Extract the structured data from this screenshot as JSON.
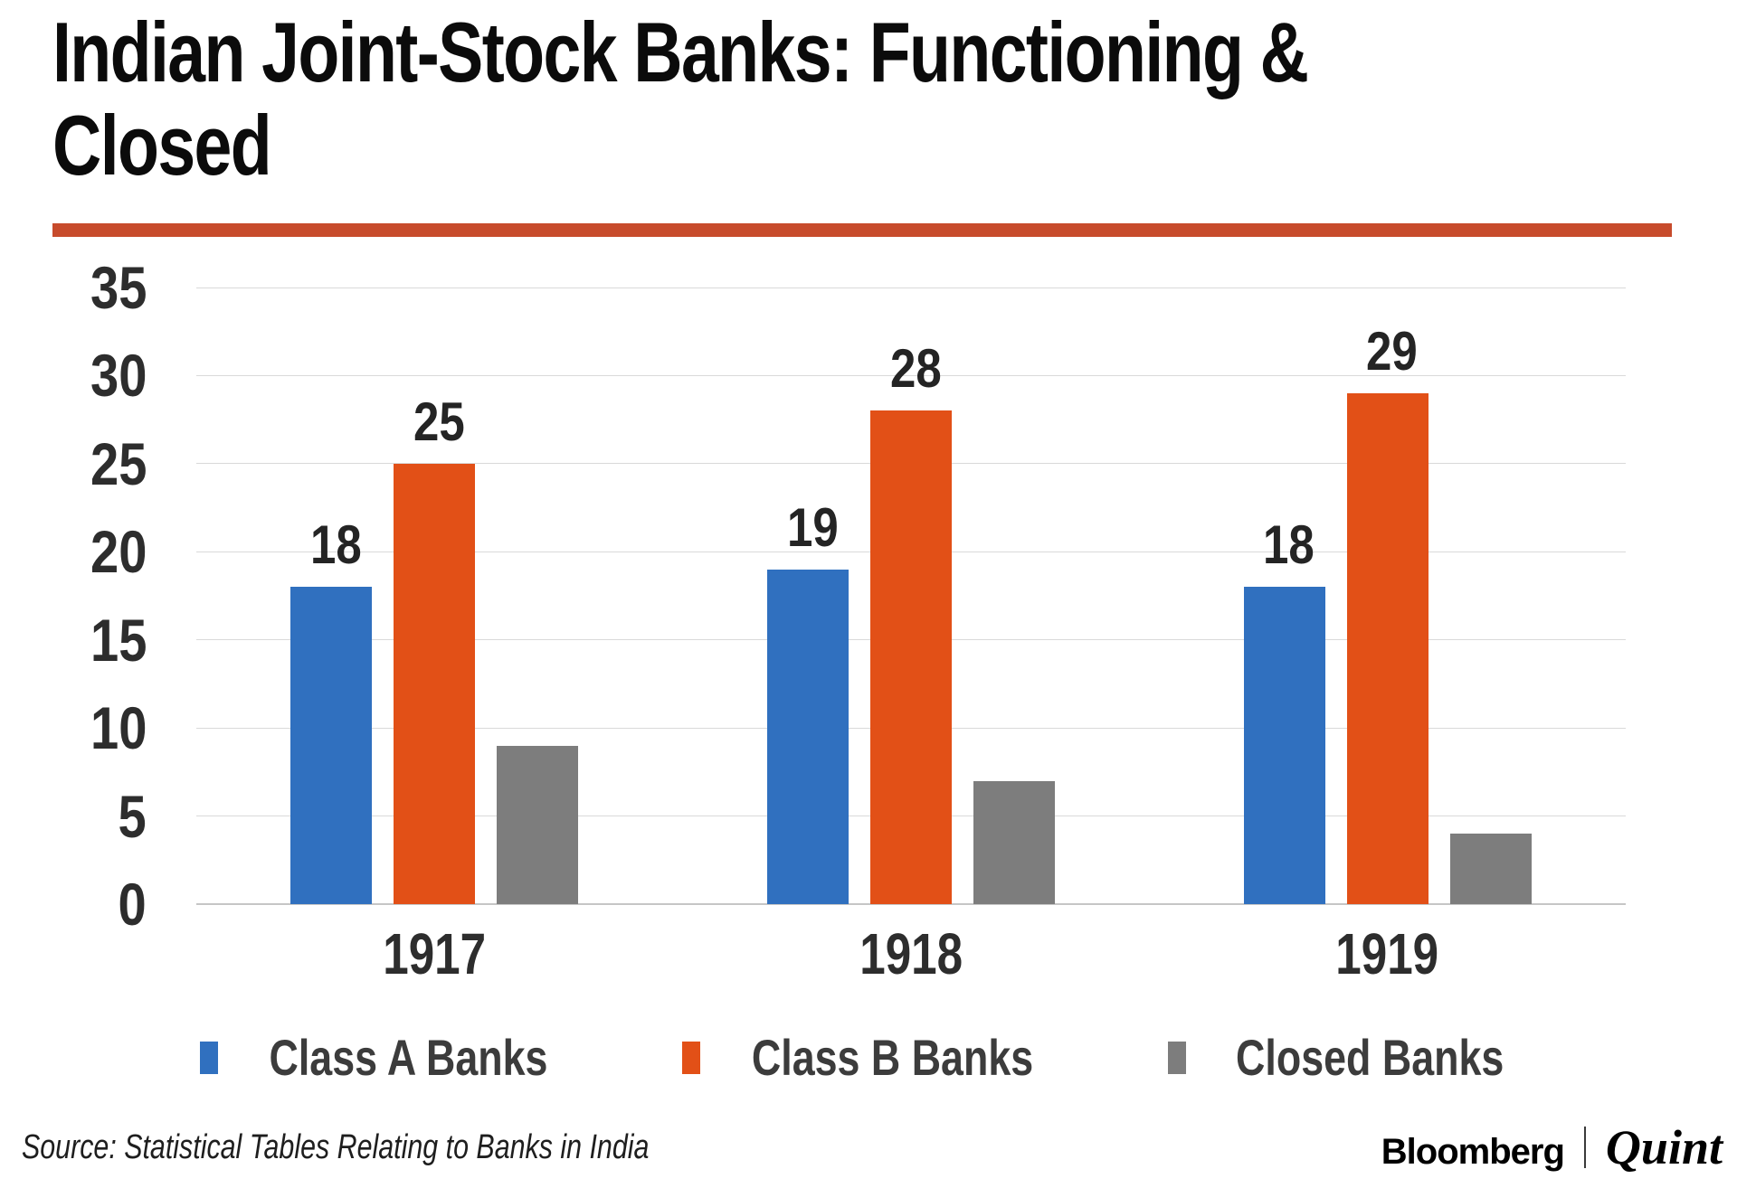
{
  "title_lines": [
    "Indian Joint-Stock Banks: Functioning &",
    "Closed"
  ],
  "accent_color": "#c74b2c",
  "chart_data": {
    "type": "bar",
    "title": "Indian Joint-Stock Banks: Functioning & Closed",
    "categories": [
      "1917",
      "1918",
      "1919"
    ],
    "series": [
      {
        "name": "Class A Banks",
        "color": "#3070bf",
        "values": [
          18,
          19,
          18
        ],
        "show_value_labels": true
      },
      {
        "name": "Class B Banks",
        "color": "#e25017",
        "values": [
          25,
          28,
          29
        ],
        "show_value_labels": true
      },
      {
        "name": "Closed Banks",
        "color": "#7d7d7d",
        "values": [
          9,
          7,
          4
        ],
        "show_value_labels": false
      }
    ],
    "ylim": [
      0,
      35
    ],
    "y_ticks": [
      35,
      30,
      25,
      20,
      15,
      10,
      5,
      0
    ],
    "grid": true,
    "legend_position": "bottom"
  },
  "footer": {
    "source": "Source: Statistical Tables Relating to Banks in India",
    "brand_left": "Bloomberg",
    "brand_right": "Quint"
  }
}
